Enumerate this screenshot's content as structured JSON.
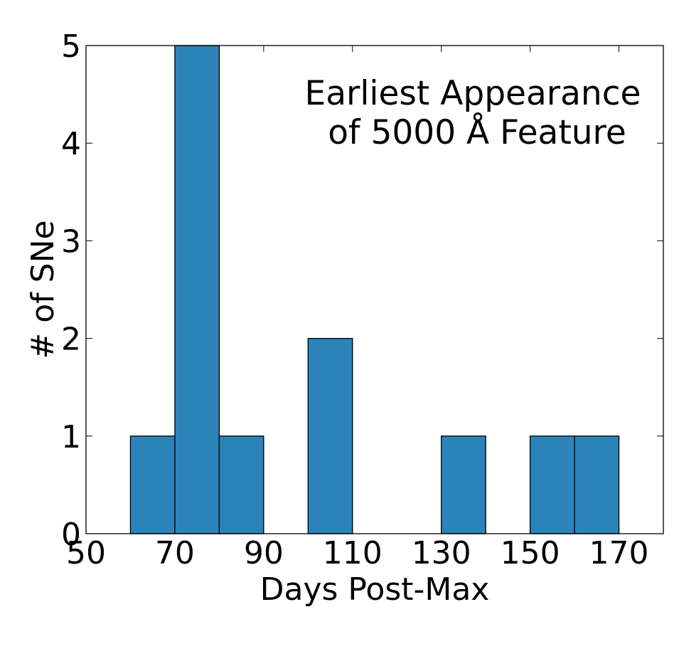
{
  "chart_data": {
    "type": "bar",
    "xlabel": "Days Post-Max",
    "ylabel": "# of SNe",
    "xlim": [
      50,
      180
    ],
    "ylim": [
      0,
      5
    ],
    "xticks": [
      "50",
      "70",
      "90",
      "110",
      "130",
      "150",
      "170"
    ],
    "yticks": [
      "0",
      "1",
      "2",
      "3",
      "4",
      "5"
    ],
    "bin_width": 10,
    "bin_starts": [
      60,
      70,
      80,
      100,
      130,
      150,
      160
    ],
    "values": [
      1,
      5,
      1,
      2,
      1,
      1,
      1
    ],
    "annotation_line1": "Earliest Appearance",
    "annotation_line2": "of 5000 Å Feature",
    "grid": false,
    "colors": {
      "bar_fill": "#2b83ba",
      "bar_edge": "#000000",
      "axes": "#000000"
    }
  }
}
